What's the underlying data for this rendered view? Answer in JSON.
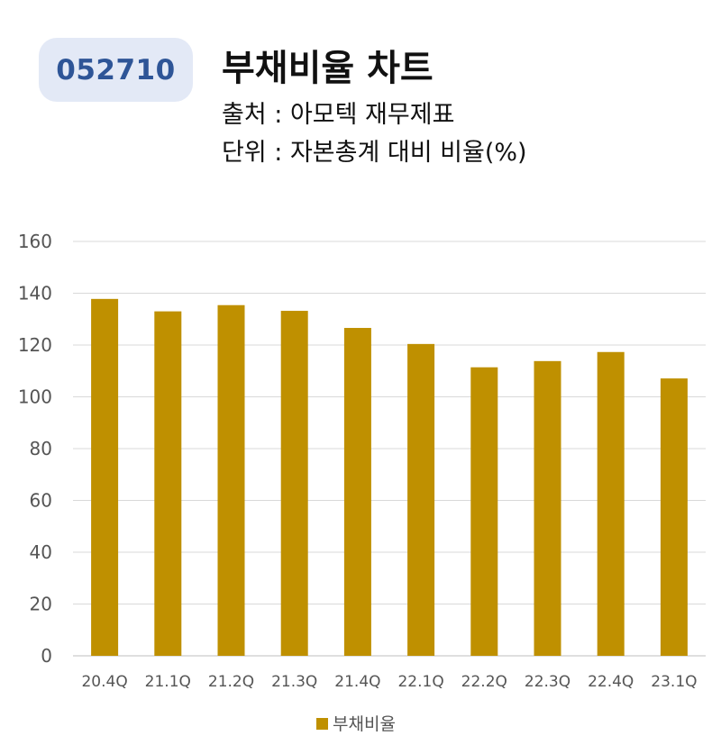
{
  "header": {
    "code": "052710",
    "title": "부채비율 차트",
    "source_line": "출처 : 아모텍 재무제표",
    "unit_line": "단위 : 자본총계 대비 비율(%)"
  },
  "colors": {
    "bar": "#bf9000",
    "grid": "#d9d9d9",
    "badge_bg": "#e3e9f6",
    "badge_text": "#2e5597"
  },
  "chart_data": {
    "type": "bar",
    "categories": [
      "20.4Q",
      "21.1Q",
      "21.2Q",
      "21.3Q",
      "21.4Q",
      "22.1Q",
      "22.2Q",
      "22.3Q",
      "22.4Q",
      "23.1Q"
    ],
    "series": [
      {
        "name": "부채비율",
        "values": [
          137.8,
          133.0,
          135.4,
          133.2,
          126.6,
          120.4,
          111.4,
          113.8,
          117.3,
          107.1
        ]
      }
    ],
    "ylim": [
      0,
      160
    ],
    "yticks": [
      0,
      20,
      40,
      60,
      80,
      100,
      120,
      140,
      160
    ],
    "grid": true,
    "legend": "bottom"
  }
}
